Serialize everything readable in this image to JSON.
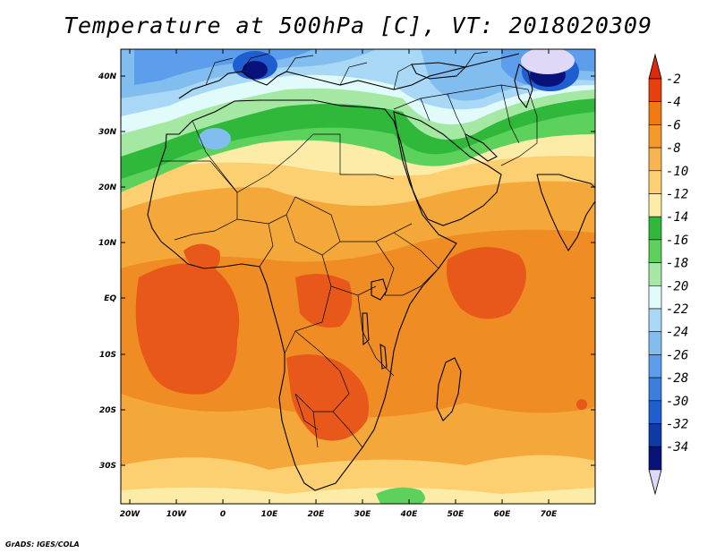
{
  "title": "Temperature at 500hPa [C], VT: 2018020309",
  "credit": "GrADS: IGES/COLA",
  "lat_labels": [
    "40N",
    "30N",
    "20N",
    "10N",
    "EQ",
    "10S",
    "20S",
    "30S"
  ],
  "lon_labels": [
    "20W",
    "10W",
    "0",
    "10E",
    "20E",
    "30E",
    "40E",
    "50E",
    "60E",
    "70E"
  ],
  "colorbar": {
    "labels": [
      "-2",
      "-4",
      "-6",
      "-8",
      "-10",
      "-12",
      "-14",
      "-16",
      "-18",
      "-20",
      "-22",
      "-24",
      "-26",
      "-28",
      "-30",
      "-32",
      "-34"
    ],
    "colors": [
      "#e8400c",
      "#f07a10",
      "#f59a28",
      "#f7b450",
      "#fcd070",
      "#fdeca8",
      "#2fb83a",
      "#5cd15c",
      "#a4e8a4",
      "#e0fbfa",
      "#a8d8f5",
      "#82bdf0",
      "#5c9eec",
      "#3a7fe0",
      "#1f5ed0",
      "#0e3aa8",
      "#08127a"
    ],
    "top_color": "#dd2a0a",
    "bottom_color": "#e0d8f7"
  },
  "palette": {
    "orange_hot": "#e8581a",
    "orange": "#f08c24",
    "orange_light": "#f5a83a",
    "yellow": "#fcd070",
    "pale_yellow": "#fdeca8",
    "green": "#2fb83a",
    "green_light": "#5cd15c",
    "mint": "#a4e8a4",
    "ice": "#e0fbfa",
    "blue_light": "#a8d8f5",
    "blue": "#82bdf0",
    "blue_mid": "#5c9eec",
    "blue_deep": "#1f5ed0",
    "navy": "#08127a",
    "lavender": "#e0d8f7"
  }
}
